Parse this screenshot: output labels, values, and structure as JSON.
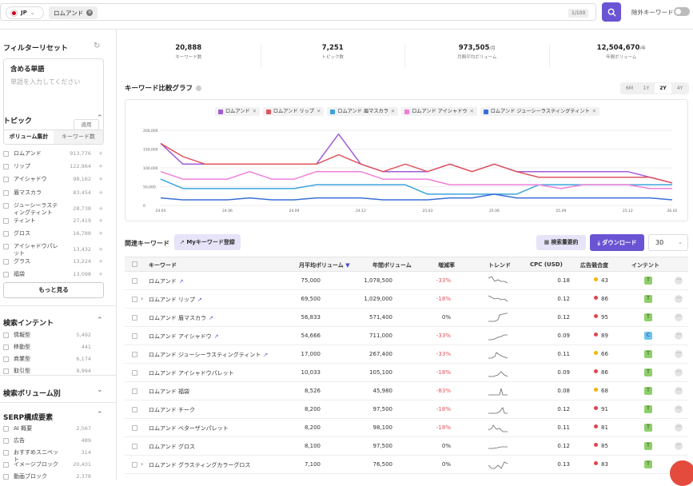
{
  "topbar": {
    "country": "JP",
    "query_chip": "ロムアンド",
    "counter": "1/100",
    "exclude_label": "除外キーワード"
  },
  "sidebar": {
    "filter_reset": "フィルターリセット",
    "include_title": "含める単語",
    "include_placeholder": "単語を入力してください",
    "apply": "適用",
    "topic_title": "トピック",
    "seg_volume": "ボリューム集計",
    "seg_keywords": "キーワード数",
    "topics": [
      {
        "name": "ロムアンド",
        "value": "913,776"
      },
      {
        "name": "リップ",
        "value": "122,964"
      },
      {
        "name": "アイシャドウ",
        "value": "98,162"
      },
      {
        "name": "眉マスカラ",
        "value": "83,454"
      },
      {
        "name": "ジューシーラスティングティント",
        "value": "28,738"
      },
      {
        "name": "ティント",
        "value": "27,419"
      },
      {
        "name": "グロス",
        "value": "16,788"
      },
      {
        "name": "アイシャドウパレット",
        "value": "13,432"
      },
      {
        "name": "グラス",
        "value": "13,224"
      },
      {
        "name": "福袋",
        "value": "13,098"
      }
    ],
    "more": "もっと見る",
    "intent_title": "検索インテント",
    "intents": [
      {
        "name": "情報型",
        "value": "5,492"
      },
      {
        "name": "移動型",
        "value": "441"
      },
      {
        "name": "商業型",
        "value": "6,174"
      },
      {
        "name": "取引型",
        "value": "9,994"
      }
    ],
    "volume_title": "検索ボリューム別",
    "serp_title": "SERP構成要素",
    "serp": [
      {
        "name": "AI 概要",
        "value": "2,567"
      },
      {
        "name": "広告",
        "value": "489"
      },
      {
        "name": "おすすめスニペット",
        "value": "314"
      },
      {
        "name": "イメージブロック",
        "value": "20,431"
      },
      {
        "name": "動画ブロック",
        "value": "2,378"
      }
    ]
  },
  "stats": [
    {
      "value": "20,888",
      "unit": "",
      "label": "キーワード数"
    },
    {
      "value": "7,251",
      "unit": "",
      "label": "トピック数"
    },
    {
      "value": "973,505",
      "unit": "/月",
      "label": "月間平均ボリューム"
    },
    {
      "value": "12,504,670",
      "unit": "/年",
      "label": "年間ボリューム"
    }
  ],
  "chart_title": "キーワード比較グラフ",
  "periods": [
    "6M",
    "1Y",
    "2Y",
    "4Y"
  ],
  "related": {
    "title": "関連キーワード",
    "my_keyword": "Myキーワード登録",
    "summary": "検索量要約",
    "download": "ダウンロード",
    "rows_per_page": "30"
  },
  "table_headers": {
    "keyword": "キーワード",
    "monthly": "月平均ボリューム",
    "yearly": "年間ボリューム",
    "growth": "増減率",
    "trend": "トレンド",
    "cpc": "CPC (USD)",
    "competition": "広告競合度",
    "intent": "インテント"
  },
  "rows": [
    {
      "kw": "ロムアンド",
      "mv": "75,000",
      "yv": "1,078,500",
      "gr": "-33%",
      "cpc": "0.18",
      "comp": "43",
      "intent": "T"
    },
    {
      "kw": "ロムアンド リップ",
      "mv": "69,500",
      "yv": "1,029,000",
      "gr": "-18%",
      "cpc": "0.12",
      "comp": "86",
      "intent": "T"
    },
    {
      "kw": "ロムアンド 眉マスカラ",
      "mv": "56,833",
      "yv": "571,400",
      "gr": "0%",
      "cpc": "0.12",
      "comp": "95",
      "intent": "T"
    },
    {
      "kw": "ロムアンド アイシャドウ",
      "mv": "54,666",
      "yv": "711,000",
      "gr": "-33%",
      "cpc": "0.09",
      "comp": "89",
      "intent": "C"
    },
    {
      "kw": "ロムアンド ジューシーラスティングティント",
      "mv": "17,000",
      "yv": "267,400",
      "gr": "-33%",
      "cpc": "0.11",
      "comp": "66",
      "intent": "T"
    },
    {
      "kw": "ロムアンド アイシャドウパレット",
      "mv": "10,033",
      "yv": "105,100",
      "gr": "-18%",
      "cpc": "0.09",
      "comp": "86",
      "intent": "T"
    },
    {
      "kw": "ロムアンド 福袋",
      "mv": "8,526",
      "yv": "45,980",
      "gr": "-83%",
      "cpc": "0.08",
      "comp": "68",
      "intent": "T"
    },
    {
      "kw": "ロムアンド チーク",
      "mv": "8,200",
      "yv": "97,500",
      "gr": "-18%",
      "cpc": "0.12",
      "comp": "91",
      "intent": "T"
    },
    {
      "kw": "ロムアンド ベターザンパレット",
      "mv": "8,200",
      "yv": "98,100",
      "gr": "-18%",
      "cpc": "0.11",
      "comp": "81",
      "intent": "T"
    },
    {
      "kw": "ロムアンド グロス",
      "mv": "8,100",
      "yv": "97,500",
      "gr": "0%",
      "cpc": "0.12",
      "comp": "85",
      "intent": "T"
    },
    {
      "kw": "ロムアンド グラスティングカラーグロス",
      "mv": "7,100",
      "yv": "76,500",
      "gr": "0%",
      "cpc": "0.13",
      "comp": "83",
      "intent": "T"
    }
  ],
  "chart_data": {
    "type": "line",
    "x": [
      "24.03",
      "",
      "",
      "24.06",
      "",
      "",
      "24.09",
      "",
      "",
      "24.12",
      "",
      "",
      "25.03",
      "",
      "",
      "25.06",
      "",
      "",
      "25.09",
      "",
      "",
      "25.12",
      "",
      "26.02"
    ],
    "ylim": [
      0,
      200000
    ],
    "yticks": [
      "0",
      "50,000",
      "100,000",
      "150,000",
      "200,000"
    ],
    "series": [
      {
        "name": "ロムアンド",
        "color": "#a35bd6",
        "values": [
          165000,
          110000,
          110000,
          110000,
          110000,
          110000,
          110000,
          110000,
          190000,
          110000,
          90000,
          90000,
          90000,
          110000,
          90000,
          110000,
          90000,
          90000,
          90000,
          90000,
          90000,
          90000,
          75000,
          60000
        ]
      },
      {
        "name": "ロムアンド リップ",
        "color": "#e0555c",
        "values": [
          165000,
          130000,
          110000,
          110000,
          110000,
          110000,
          110000,
          110000,
          135000,
          110000,
          90000,
          110000,
          90000,
          110000,
          90000,
          110000,
          90000,
          75000,
          75000,
          75000,
          75000,
          75000,
          75000,
          60000
        ]
      },
      {
        "name": "ロムアンド 眉マスカラ",
        "color": "#3aa4dd",
        "values": [
          70000,
          45000,
          45000,
          45000,
          45000,
          45000,
          45000,
          55000,
          55000,
          55000,
          55000,
          55000,
          30000,
          30000,
          30000,
          30000,
          30000,
          55000,
          55000,
          55000,
          55000,
          55000,
          55000,
          55000
        ]
      },
      {
        "name": "ロムアンド アイシャドウ",
        "color": "#ef7fd9",
        "values": [
          90000,
          70000,
          70000,
          70000,
          90000,
          70000,
          70000,
          90000,
          90000,
          90000,
          70000,
          70000,
          70000,
          55000,
          55000,
          55000,
          55000,
          55000,
          45000,
          55000,
          55000,
          55000,
          45000,
          45000
        ]
      },
      {
        "name": "ロムアンド ジューシーラスティングティント",
        "color": "#3a6fd8",
        "values": [
          20000,
          15000,
          15000,
          15000,
          20000,
          15000,
          15000,
          20000,
          20000,
          20000,
          15000,
          15000,
          15000,
          20000,
          20000,
          30000,
          20000,
          20000,
          20000,
          20000,
          20000,
          20000,
          20000,
          15000
        ]
      }
    ]
  }
}
